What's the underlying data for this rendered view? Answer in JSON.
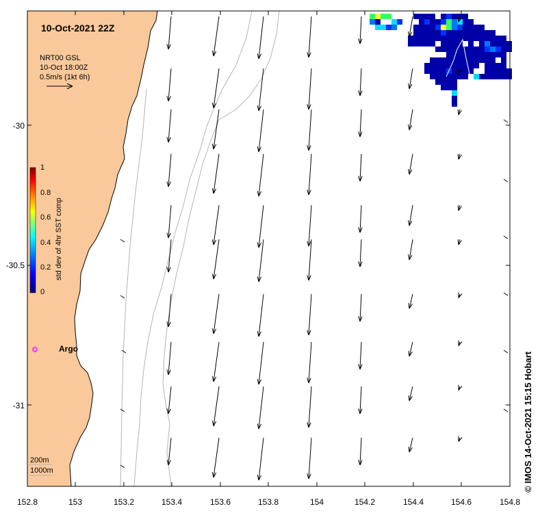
{
  "title": "10-Oct-2021 22Z",
  "vector_info": {
    "line1": "NRT00 GSL",
    "line2": "10-Oct 18:00Z",
    "line3": "0.5m/s (1kt 6h)"
  },
  "colorbar": {
    "label": "std dev of 4hr SST comp",
    "ticks": [
      "0",
      "0.2",
      "0.4",
      "0.6",
      "0.8",
      "1"
    ],
    "colors": [
      "#00007f",
      "#0000ff",
      "#007fff",
      "#00ffff",
      "#7fff7f",
      "#ffff00",
      "#ff7f00",
      "#ff0000",
      "#7f0000"
    ]
  },
  "x_axis": {
    "ticks": [
      "152.8",
      "153",
      "153.2",
      "153.4",
      "153.6",
      "153.8",
      "154",
      "154.2",
      "154.4",
      "154.6",
      "154.8"
    ],
    "range": [
      152.8,
      154.8
    ]
  },
  "y_axis": {
    "ticks": [
      "-30",
      "-30.5",
      "-31"
    ],
    "range": [
      -31.3,
      -29.6
    ]
  },
  "argo": {
    "label": "Argo",
    "color": "#ff33ff"
  },
  "depth_contours": {
    "line1": "200m",
    "line2": "1000m"
  },
  "credit": "© IMOS 14-Oct-2021 15:15 Hobart",
  "colors": {
    "land": "#f9c99b",
    "coastline": "#000000",
    "isobath": "#b4b4b4"
  }
}
